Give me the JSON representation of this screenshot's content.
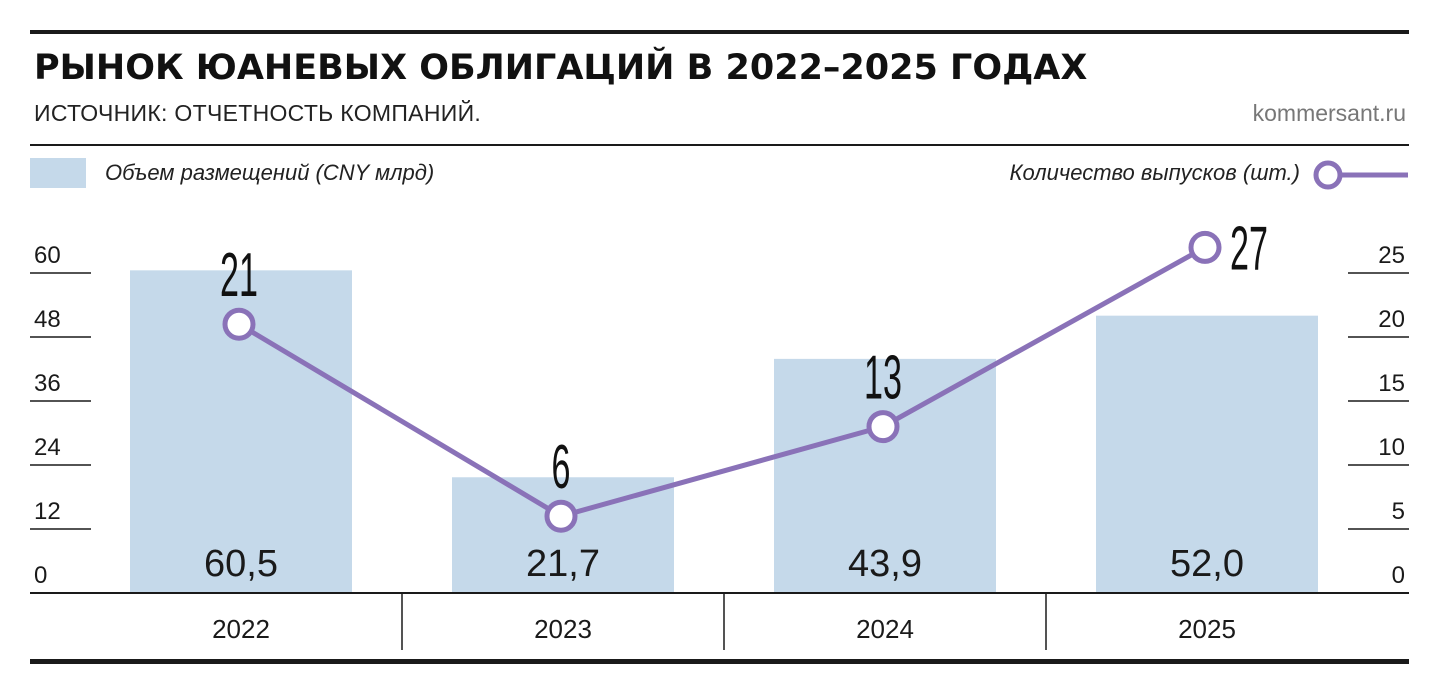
{
  "header": {
    "title": "РЫНОК ЮАНЕВЫХ ОБЛИГАЦИЙ В 2022–2025 ГОДАХ",
    "source": "ИСТОЧНИК: ОТЧЕТНОСТЬ КОМПАНИЙ.",
    "site": "kommersant.ru"
  },
  "legend": {
    "bars_label": "Объем размещений (CNY млрд)",
    "line_label": "Количество выпусков (шт.)"
  },
  "colors": {
    "bar": "#c5d9ea",
    "line": "#8a72b8",
    "text": "#1a1a1a"
  },
  "chart_data": {
    "type": "bar",
    "categories": [
      "2022",
      "2023",
      "2024",
      "2025"
    ],
    "series": [
      {
        "name": "Объем размещений (CNY млрд)",
        "type": "bar",
        "axis": "left",
        "values": [
          60.5,
          21.7,
          43.9,
          52.0
        ],
        "labels": [
          "60,5",
          "21,7",
          "43,9",
          "52,0"
        ]
      },
      {
        "name": "Количество выпусков (шт.)",
        "type": "line",
        "axis": "right",
        "values": [
          21,
          6,
          13,
          27
        ],
        "labels": [
          "21",
          "6",
          "13",
          "27"
        ]
      }
    ],
    "y_left": {
      "ylim": [
        0,
        60
      ],
      "ticks": [
        0,
        12,
        24,
        36,
        48,
        60
      ]
    },
    "y_right": {
      "ylim": [
        0,
        25
      ],
      "ticks": [
        0,
        5,
        10,
        15,
        20,
        25
      ]
    },
    "legend": "top"
  }
}
